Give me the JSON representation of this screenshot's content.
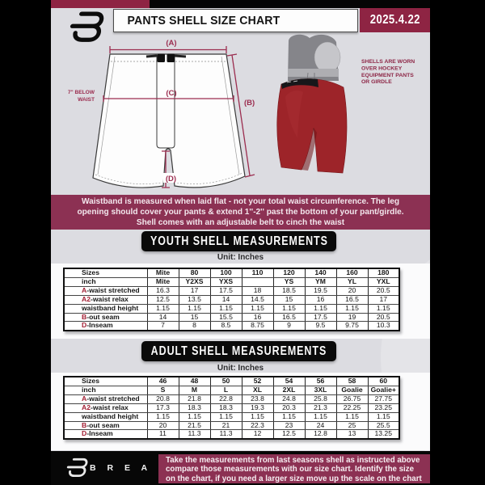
{
  "header": {
    "title": "PANTS SHELL SIZE CHART",
    "date": "2025.4.22"
  },
  "diagram": {
    "label_a": "(A)",
    "label_b": "(B)",
    "label_c": "(C)",
    "label_d": "(D)",
    "below_waist_line1": "7'' BELOW",
    "below_waist_line2": "WAIST",
    "shell_note_line1": "SHELLS ARE WORN",
    "shell_note_line2": "OVER HOCKEY",
    "shell_note_line3": "EQUIPMENT PANTS",
    "shell_note_line4": "OR GIRDLE"
  },
  "notice_banner": {
    "line1": "Waistband is measured when laid flat - not your total waist circumference. The leg",
    "line2": "opening should cover your pants & extend 1''-2'' past the bottom of your pant/girdle.",
    "line3": "Shell comes with an adjustable belt to cinch the waist"
  },
  "youth_section": {
    "title": "YOUTH SHELL MEASUREMENTS",
    "unit": "Unit: Inches"
  },
  "adult_section": {
    "title": "ADULT SHELL MEASUREMENTS",
    "unit": "Unit: Inches"
  },
  "youth_table": {
    "rows": [
      {
        "prefix": "",
        "label": "Sizes",
        "header": true,
        "values": [
          "Mite",
          "80",
          "100",
          "110",
          "120",
          "140",
          "160",
          "180"
        ]
      },
      {
        "prefix": "",
        "label": "inch",
        "header": true,
        "values": [
          "Mite",
          "Y2XS",
          "YXS",
          "",
          "YS",
          "YM",
          "YL",
          "YXL"
        ]
      },
      {
        "prefix": "A",
        "label": "-waist stretched",
        "header": false,
        "values": [
          "16.3",
          "17",
          "17.5",
          "18",
          "18.5",
          "19.5",
          "20",
          "20.5"
        ]
      },
      {
        "prefix": "A2",
        "label": "-waist relax",
        "header": false,
        "values": [
          "12.5",
          "13.5",
          "14",
          "14.5",
          "15",
          "16",
          "16.5",
          "17"
        ]
      },
      {
        "prefix": "",
        "label": "waistband height",
        "header": false,
        "values": [
          "1.15",
          "1.15",
          "1.15",
          "1.15",
          "1.15",
          "1.15",
          "1.15",
          "1.15"
        ]
      },
      {
        "prefix": "B",
        "label": "-out seam",
        "header": false,
        "values": [
          "14",
          "15",
          "15.5",
          "16",
          "16.5",
          "17.5",
          "19",
          "20.5"
        ]
      },
      {
        "prefix": "D",
        "label": "-Inseam",
        "header": false,
        "values": [
          "7",
          "8",
          "8.5",
          "8.75",
          "9",
          "9.5",
          "9.75",
          "10.3"
        ]
      }
    ]
  },
  "adult_table": {
    "rows": [
      {
        "prefix": "",
        "label": "Sizes",
        "header": true,
        "values": [
          "46",
          "48",
          "50",
          "52",
          "54",
          "56",
          "58",
          "60"
        ]
      },
      {
        "prefix": "",
        "label": "inch",
        "header": true,
        "values": [
          "S",
          "M",
          "L",
          "XL",
          "2XL",
          "3XL",
          "Goalie",
          "Goalie+"
        ]
      },
      {
        "prefix": "A",
        "label": "-waist stretched",
        "header": false,
        "values": [
          "20.8",
          "21.8",
          "22.8",
          "23.8",
          "24.8",
          "25.8",
          "26.75",
          "27.75"
        ]
      },
      {
        "prefix": "A2",
        "label": "-waist relax",
        "header": false,
        "values": [
          "17.3",
          "18.3",
          "18.3",
          "19.3",
          "20.3",
          "21.3",
          "22.25",
          "23.25"
        ]
      },
      {
        "prefix": "",
        "label": "waistband height",
        "header": false,
        "values": [
          "1.15",
          "1.15",
          "1.15",
          "1.15",
          "1.15",
          "1.15",
          "1.15",
          "1.15"
        ]
      },
      {
        "prefix": "B",
        "label": "-out seam",
        "header": false,
        "values": [
          "20",
          "21.5",
          "21",
          "22.3",
          "23",
          "24",
          "25",
          "25.5"
        ]
      },
      {
        "prefix": "D",
        "label": "-Inseam",
        "header": false,
        "values": [
          "11",
          "11.3",
          "11.3",
          "12",
          "12.5",
          "12.8",
          "13",
          "13.25"
        ]
      }
    ]
  },
  "footer": {
    "brand": "B R E A K A W A Y",
    "note_line1": "Take the measurements from last seasons shell as instructed above",
    "note_line2": "compare those measurements  with our size chart. Identify the size",
    "note_line3": "on the chart, if you need a larger size move up the scale on the chart"
  },
  "colors": {
    "maroon_strip": "#8e2443",
    "banner_maroon": "#8c3153",
    "accent_red": "#a31f34",
    "measure_line": "#9b2d4f",
    "shell_red": "#9d2429",
    "background_gray": "#dcdce1"
  }
}
